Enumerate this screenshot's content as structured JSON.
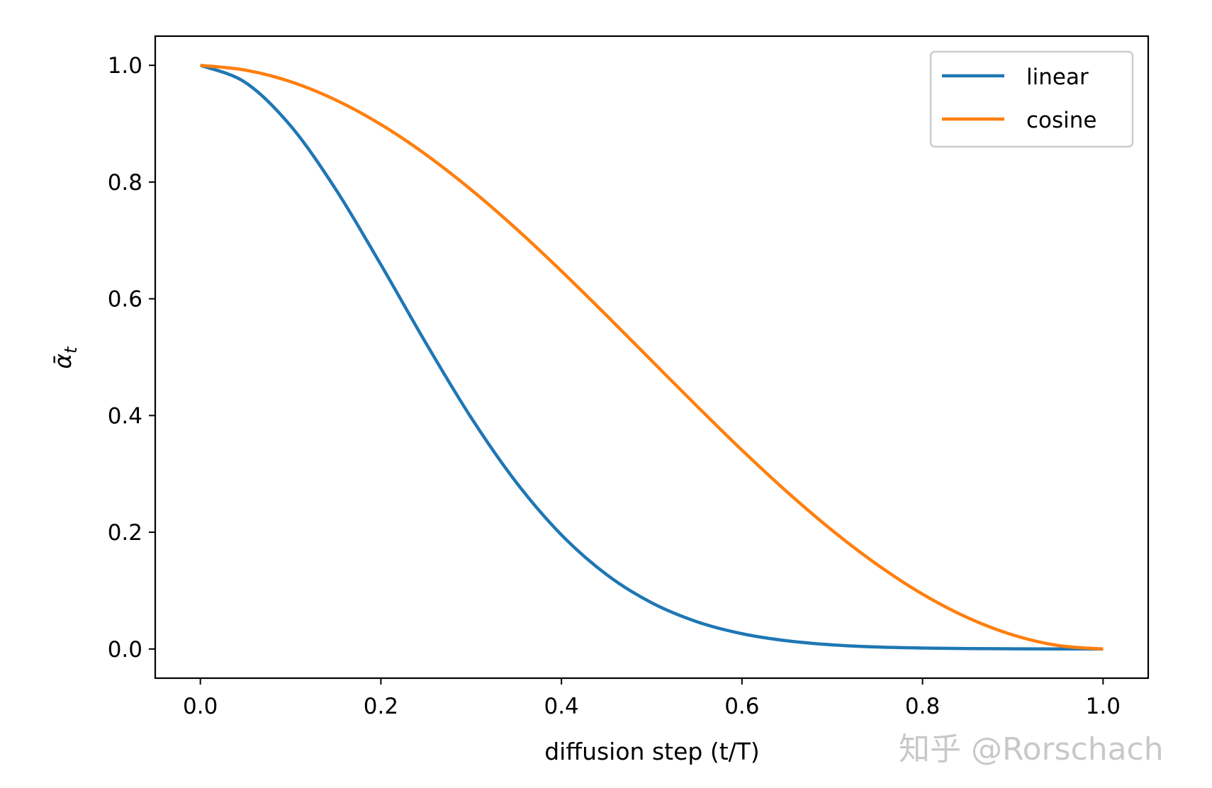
{
  "chart_data": {
    "type": "line",
    "title": "",
    "xlabel": "diffusion step (t/T)",
    "ylabel": "ᾱ",
    "ylabel_sub": "t",
    "xlim": [
      -0.05,
      1.05
    ],
    "ylim": [
      -0.05,
      1.05
    ],
    "xticks": [
      0.0,
      0.2,
      0.4,
      0.6,
      0.8,
      1.0
    ],
    "xtick_labels": [
      "0.0",
      "0.2",
      "0.4",
      "0.6",
      "0.8",
      "1.0"
    ],
    "yticks": [
      0.0,
      0.2,
      0.4,
      0.6,
      0.8,
      1.0
    ],
    "ytick_labels": [
      "0.0",
      "0.2",
      "0.4",
      "0.6",
      "0.8",
      "1.0"
    ],
    "grid": false,
    "legend_position": "top-right",
    "x": [
      0,
      0.05,
      0.1,
      0.15,
      0.2,
      0.25,
      0.3,
      0.35,
      0.4,
      0.45,
      0.5,
      0.55,
      0.6,
      0.65,
      0.7,
      0.75,
      0.8,
      0.85,
      0.9,
      0.95,
      1.0
    ],
    "series": [
      {
        "name": "linear",
        "color": "#1f77b4",
        "values": [
          1,
          0.9705,
          0.8963,
          0.7875,
          0.6584,
          0.5237,
          0.3963,
          0.2854,
          0.1955,
          0.1275,
          0.0791,
          0.0467,
          0.0262,
          0.014,
          0.0071,
          0.0034,
          0.0016,
          0.0007,
          0.0003,
          0.0001,
          0.0
        ]
      },
      {
        "name": "cosine",
        "color": "#ff7f0e",
        "values": [
          1,
          0.9918,
          0.972,
          0.9406,
          0.8986,
          0.8469,
          0.7868,
          0.7198,
          0.6474,
          0.5715,
          0.4938,
          0.4163,
          0.3406,
          0.2691,
          0.2031,
          0.1443,
          0.094,
          0.0536,
          0.0241,
          0.006,
          0.0
        ]
      }
    ]
  },
  "watermark": "知乎 @Rorschach"
}
